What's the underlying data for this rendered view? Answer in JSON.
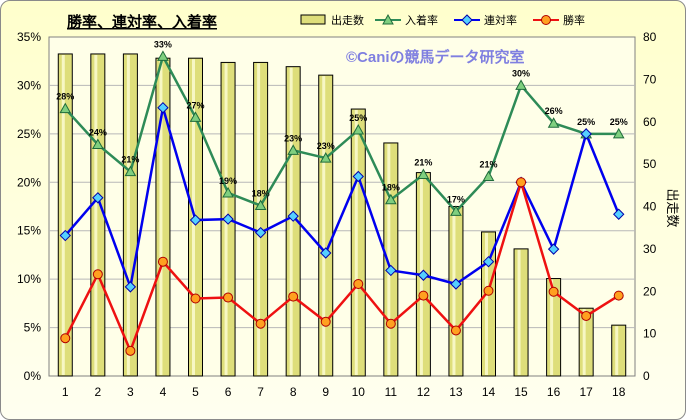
{
  "chart_data": {
    "type": "bar-line combo",
    "title": "勝率、連対率、入着率",
    "watermark": "©Caniの競馬データ研究室",
    "categories": [
      "1",
      "2",
      "3",
      "4",
      "5",
      "6",
      "7",
      "8",
      "9",
      "10",
      "11",
      "12",
      "13",
      "14",
      "15",
      "16",
      "17",
      "18"
    ],
    "y_left": {
      "label": "",
      "range": [
        0,
        35
      ],
      "ticks": [
        "0%",
        "5%",
        "10%",
        "15%",
        "20%",
        "25%",
        "30%",
        "35%"
      ],
      "step": 5
    },
    "y_right": {
      "label": "出走数",
      "range": [
        0,
        80
      ],
      "ticks": [
        "0",
        "10",
        "20",
        "30",
        "40",
        "50",
        "60",
        "70",
        "80"
      ],
      "step": 10
    },
    "grid": true,
    "legend_position": "top",
    "series": [
      {
        "name": "出走数",
        "type": "bar",
        "axis": "right",
        "color": "#dede7a",
        "values": [
          76,
          76,
          76,
          75,
          75,
          74,
          74,
          73,
          71,
          63,
          55,
          48,
          40,
          34,
          30,
          23,
          16,
          12
        ]
      },
      {
        "name": "入着率",
        "type": "line",
        "axis": "left",
        "color": "#2e8b57",
        "values": [
          27.6,
          23.9,
          21.1,
          33.0,
          26.7,
          18.9,
          17.6,
          23.3,
          22.5,
          25.4,
          18.2,
          20.8,
          17.0,
          20.6,
          30.0,
          26.1,
          25.0,
          25.0
        ],
        "data_labels": [
          "28%",
          "24%",
          "21%",
          "33%",
          "27%",
          "19%",
          "18%",
          "23%",
          "23%",
          "25%",
          "18%",
          "21%",
          "17%",
          "21%",
          "30%",
          "26%",
          "25%",
          "25%"
        ]
      },
      {
        "name": "連対率",
        "type": "line",
        "axis": "left",
        "color": "#0000ee",
        "values": [
          14.5,
          18.4,
          9.2,
          27.7,
          16.1,
          16.2,
          14.8,
          16.5,
          12.7,
          20.6,
          10.9,
          10.4,
          9.5,
          11.8,
          20.0,
          13.1,
          25.0,
          16.7
        ]
      },
      {
        "name": "勝率",
        "type": "line",
        "axis": "left",
        "color": "#ee1111",
        "values": [
          3.9,
          10.5,
          2.6,
          11.8,
          8.0,
          8.1,
          5.4,
          8.2,
          5.6,
          9.5,
          5.4,
          8.3,
          4.7,
          8.8,
          20.0,
          8.7,
          6.2,
          8.3
        ]
      }
    ]
  }
}
